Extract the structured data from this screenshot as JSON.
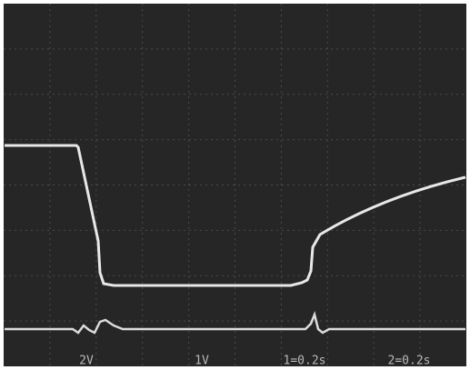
{
  "scale_labels": [
    "2V",
    "1V",
    "1=0.2s",
    "2=0.2s"
  ]
}
